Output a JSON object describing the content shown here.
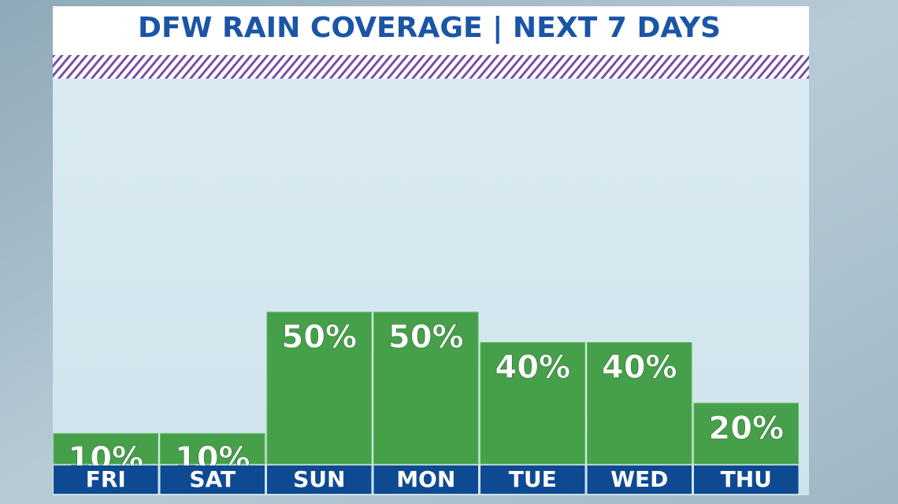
{
  "chart_data": {
    "type": "bar",
    "title": "DFW RAIN COVERAGE | NEXT 7 DAYS",
    "categories": [
      "FRI",
      "SAT",
      "SUN",
      "MON",
      "TUE",
      "WED",
      "THU"
    ],
    "values": [
      10,
      10,
      50,
      50,
      40,
      40,
      20
    ],
    "value_labels": [
      "10%",
      "10%",
      "50%",
      "50%",
      "40%",
      "40%",
      "20%"
    ],
    "color": "#46a04a"
  }
}
